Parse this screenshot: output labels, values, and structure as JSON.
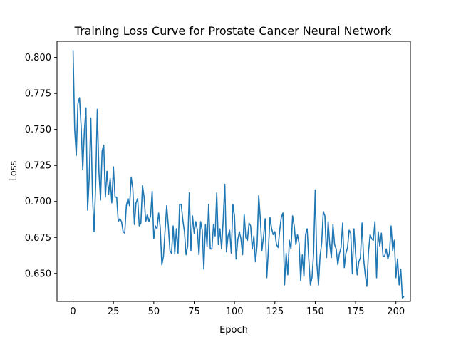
{
  "chart_data": {
    "type": "line",
    "title": "Training Loss Curve for Prostate Cancer Neural Network",
    "xlabel": "Epoch",
    "ylabel": "Loss",
    "xlim": [
      -9.95,
      208.95
    ],
    "ylim": [
      0.6306,
      0.8112
    ],
    "xticks": [
      0,
      25,
      50,
      75,
      100,
      125,
      150,
      175,
      200
    ],
    "yticks": [
      0.65,
      0.675,
      0.7,
      0.725,
      0.75,
      0.775,
      0.8
    ],
    "ytick_labels": [
      "0.650",
      "0.675",
      "0.700",
      "0.725",
      "0.750",
      "0.775",
      "0.800"
    ],
    "grid": false,
    "line_color": "#1f77b4",
    "series": [
      {
        "values": [
          0.805,
          0.75,
          0.732,
          0.768,
          0.772,
          0.752,
          0.722,
          0.749,
          0.765,
          0.694,
          0.716,
          0.758,
          0.705,
          0.679,
          0.712,
          0.764,
          0.721,
          0.701,
          0.735,
          0.739,
          0.703,
          0.721,
          0.705,
          0.716,
          0.699,
          0.724,
          0.703,
          0.703,
          0.686,
          0.688,
          0.686,
          0.679,
          0.678,
          0.697,
          0.702,
          0.697,
          0.717,
          0.709,
          0.684,
          0.699,
          0.702,
          0.683,
          0.685,
          0.711,
          0.703,
          0.686,
          0.691,
          0.686,
          0.69,
          0.707,
          0.674,
          0.683,
          0.681,
          0.692,
          0.682,
          0.656,
          0.662,
          0.68,
          0.697,
          0.683,
          0.666,
          0.664,
          0.683,
          0.664,
          0.681,
          0.664,
          0.698,
          0.698,
          0.687,
          0.679,
          0.663,
          0.669,
          0.706,
          0.666,
          0.69,
          0.678,
          0.686,
          0.68,
          0.663,
          0.686,
          0.68,
          0.653,
          0.684,
          0.669,
          0.698,
          0.667,
          0.667,
          0.684,
          0.676,
          0.706,
          0.67,
          0.681,
          0.667,
          0.687,
          0.712,
          0.665,
          0.676,
          0.68,
          0.664,
          0.698,
          0.69,
          0.66,
          0.673,
          0.679,
          0.674,
          0.663,
          0.691,
          0.675,
          0.673,
          0.685,
          0.683,
          0.667,
          0.676,
          0.658,
          0.67,
          0.704,
          0.688,
          0.666,
          0.676,
          0.688,
          0.647,
          0.667,
          0.689,
          0.681,
          0.677,
          0.679,
          0.67,
          0.668,
          0.68,
          0.689,
          0.692,
          0.642,
          0.664,
          0.649,
          0.673,
          0.667,
          0.69,
          0.683,
          0.67,
          0.677,
          0.671,
          0.645,
          0.663,
          0.648,
          0.677,
          0.681,
          0.66,
          0.642,
          0.647,
          0.664,
          0.708,
          0.657,
          0.642,
          0.662,
          0.671,
          0.693,
          0.69,
          0.661,
          0.686,
          0.67,
          0.661,
          0.684,
          0.67,
          0.667,
          0.656,
          0.664,
          0.668,
          0.685,
          0.654,
          0.664,
          0.668,
          0.68,
          0.678,
          0.65,
          0.681,
          0.664,
          0.649,
          0.658,
          0.661,
          0.685,
          0.66,
          0.649,
          0.641,
          0.665,
          0.677,
          0.674,
          0.673,
          0.686,
          0.647,
          0.679,
          0.669,
          0.678,
          0.662,
          0.662,
          0.667,
          0.66,
          0.664,
          0.683,
          0.666,
          0.673,
          0.647,
          0.66,
          0.642,
          0.653,
          0.633,
          0.634
        ]
      }
    ]
  }
}
